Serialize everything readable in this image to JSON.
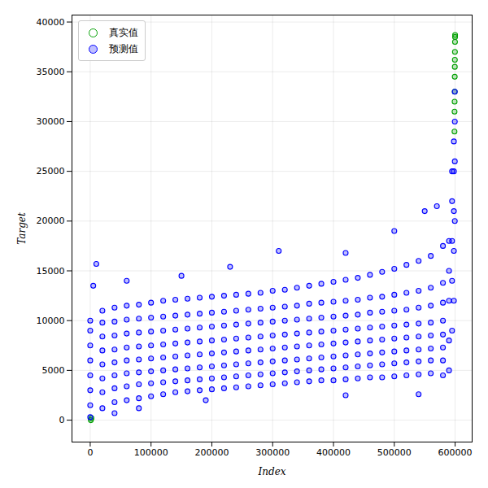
{
  "chart_data": {
    "type": "scatter",
    "x_label": "Index",
    "y_label": "Target",
    "xlim": [
      -30000,
      628000
    ],
    "ylim": [
      -2200,
      40700
    ],
    "xticks": [
      0,
      100000,
      200000,
      300000,
      400000,
      500000,
      600000
    ],
    "yticks": [
      0,
      5000,
      10000,
      15000,
      20000,
      25000,
      30000,
      35000,
      40000
    ],
    "grid": true,
    "legend": "upper left",
    "series": [
      {
        "name": "真实值",
        "color": "#00a000",
        "marker": "o",
        "x": [
          599000,
          599100,
          599200,
          599300,
          599400,
          599500,
          599600,
          599700,
          599800,
          599900,
          600000,
          1000,
          2000
        ],
        "values": [
          29000,
          31000,
          32000,
          33000,
          34500,
          35500,
          36200,
          37000,
          38000,
          38500,
          38700,
          0,
          200
        ]
      },
      {
        "name": "预测值",
        "color": "#0000ff",
        "marker": "o",
        "x": [
          0,
          0,
          0,
          0,
          0,
          0,
          0,
          0,
          20000,
          20000,
          20000,
          20000,
          20000,
          20000,
          20000,
          20000,
          40000,
          40000,
          40000,
          40000,
          40000,
          40000,
          40000,
          40000,
          60000,
          60000,
          60000,
          60000,
          60000,
          60000,
          60000,
          60000,
          80000,
          80000,
          80000,
          80000,
          80000,
          80000,
          80000,
          80000,
          100000,
          100000,
          100000,
          100000,
          100000,
          100000,
          100000,
          100000,
          120000,
          120000,
          120000,
          120000,
          120000,
          120000,
          120000,
          120000,
          140000,
          140000,
          140000,
          140000,
          140000,
          140000,
          140000,
          140000,
          160000,
          160000,
          160000,
          160000,
          160000,
          160000,
          160000,
          160000,
          180000,
          180000,
          180000,
          180000,
          180000,
          180000,
          180000,
          180000,
          200000,
          200000,
          200000,
          200000,
          200000,
          200000,
          200000,
          200000,
          220000,
          220000,
          220000,
          220000,
          220000,
          220000,
          220000,
          220000,
          240000,
          240000,
          240000,
          240000,
          240000,
          240000,
          240000,
          240000,
          260000,
          260000,
          260000,
          260000,
          260000,
          260000,
          260000,
          260000,
          280000,
          280000,
          280000,
          280000,
          280000,
          280000,
          280000,
          280000,
          300000,
          300000,
          300000,
          300000,
          300000,
          300000,
          300000,
          300000,
          320000,
          320000,
          320000,
          320000,
          320000,
          320000,
          320000,
          320000,
          340000,
          340000,
          340000,
          340000,
          340000,
          340000,
          340000,
          340000,
          360000,
          360000,
          360000,
          360000,
          360000,
          360000,
          360000,
          360000,
          380000,
          380000,
          380000,
          380000,
          380000,
          380000,
          380000,
          380000,
          400000,
          400000,
          400000,
          400000,
          400000,
          400000,
          400000,
          400000,
          420000,
          420000,
          420000,
          420000,
          420000,
          420000,
          420000,
          420000,
          440000,
          440000,
          440000,
          440000,
          440000,
          440000,
          440000,
          440000,
          460000,
          460000,
          460000,
          460000,
          460000,
          460000,
          460000,
          460000,
          480000,
          480000,
          480000,
          480000,
          480000,
          480000,
          480000,
          480000,
          500000,
          500000,
          500000,
          500000,
          500000,
          500000,
          500000,
          500000,
          520000,
          520000,
          520000,
          520000,
          520000,
          520000,
          520000,
          520000,
          540000,
          540000,
          540000,
          540000,
          540000,
          540000,
          540000,
          540000,
          560000,
          560000,
          560000,
          560000,
          560000,
          560000,
          560000,
          560000,
          580000,
          580000,
          580000,
          580000,
          580000,
          580000,
          580000,
          580000,
          590000,
          590000,
          590000,
          590000,
          590000,
          595000,
          595000,
          595000,
          595000,
          595000,
          598000,
          598000,
          598000,
          598000,
          598000,
          599500,
          599500,
          599500,
          599500,
          10000,
          5000,
          60000,
          150000,
          230000,
          310000,
          420000,
          500000,
          550000,
          570000,
          540000,
          420000,
          190000,
          40000,
          80000
        ],
        "values": [
          300,
          1500,
          3000,
          4500,
          6000,
          7500,
          9000,
          10000,
          1200,
          2800,
          4200,
          5600,
          7000,
          8400,
          9800,
          11000,
          1800,
          3200,
          4500,
          5800,
          7100,
          8500,
          9900,
          11300,
          2000,
          3400,
          4700,
          6000,
          7300,
          8700,
          10100,
          11500,
          2200,
          3600,
          4800,
          6100,
          7400,
          8800,
          10200,
          11600,
          2400,
          3700,
          4900,
          6200,
          7500,
          8900,
          10300,
          11800,
          2600,
          3800,
          5000,
          6300,
          7600,
          9000,
          10400,
          12000,
          2800,
          3900,
          5100,
          6400,
          7700,
          9100,
          10500,
          12100,
          2900,
          4000,
          5200,
          6500,
          7800,
          9200,
          10600,
          12200,
          3000,
          4100,
          5300,
          6600,
          7900,
          9300,
          10700,
          12300,
          3100,
          4200,
          5400,
          6700,
          8000,
          9400,
          10800,
          12400,
          3200,
          4300,
          5500,
          6800,
          8100,
          9500,
          10900,
          12500,
          3300,
          4400,
          5600,
          6900,
          8200,
          9600,
          11000,
          12600,
          3400,
          4500,
          5700,
          7000,
          8300,
          9700,
          11100,
          12700,
          3500,
          4600,
          5800,
          7100,
          8400,
          9800,
          11200,
          12800,
          3600,
          4700,
          5900,
          7200,
          8500,
          9900,
          11300,
          13000,
          3700,
          4800,
          6000,
          7300,
          8600,
          10000,
          11400,
          13100,
          3800,
          4900,
          6100,
          7400,
          8700,
          10100,
          11500,
          13300,
          3900,
          5000,
          6200,
          7500,
          8800,
          10200,
          11700,
          13500,
          4000,
          5100,
          6300,
          7600,
          8900,
          10300,
          11800,
          13700,
          4000,
          5200,
          6400,
          7700,
          9000,
          10400,
          11900,
          13900,
          4100,
          5300,
          6500,
          7800,
          9100,
          10500,
          12000,
          14100,
          4200,
          5400,
          6600,
          7900,
          9200,
          10600,
          12100,
          14300,
          4300,
          5500,
          6700,
          8000,
          9300,
          10800,
          12300,
          14600,
          4300,
          5600,
          6800,
          8100,
          9400,
          10900,
          12400,
          14900,
          4400,
          5700,
          6900,
          8200,
          9500,
          11000,
          12600,
          15200,
          4500,
          5800,
          7000,
          8300,
          9600,
          11100,
          12800,
          15600,
          4600,
          5900,
          7100,
          8400,
          9700,
          11300,
          13000,
          16000,
          4700,
          6000,
          7200,
          8500,
          9800,
          11500,
          13300,
          16500,
          4500,
          6000,
          7300,
          8600,
          10000,
          11800,
          13800,
          17500,
          5000,
          8000,
          12000,
          15000,
          18000,
          9000,
          14000,
          18000,
          22000,
          25000,
          12000,
          17000,
          21000,
          25000,
          28000,
          20000,
          26000,
          30000,
          33000,
          15700,
          13500,
          14000,
          14500,
          15400,
          17000,
          16800,
          19000,
          21000,
          21500,
          2600,
          2500,
          2000,
          700,
          1200
        ]
      }
    ]
  }
}
